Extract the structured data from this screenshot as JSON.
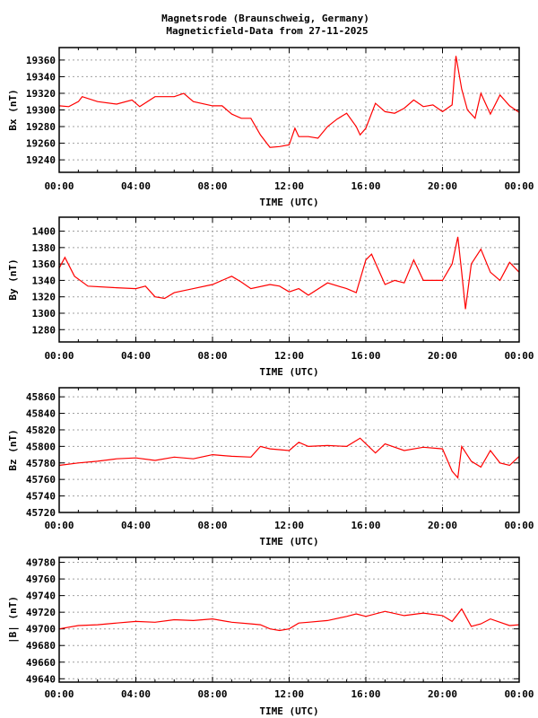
{
  "title": {
    "line1": "Magnetsrode (Braunschweig, Germany)",
    "line2": "Magneticfield-Data from 27-11-2025"
  },
  "colors": {
    "series": "#ff0000",
    "grid": "#a0a0a0",
    "axis": "#000000"
  },
  "chart_data": [
    {
      "type": "line",
      "ylabel": "Bx (nT)",
      "xlabel": "TIME (UTC)",
      "xlim": [
        0,
        24
      ],
      "ylim": [
        19225,
        19375
      ],
      "xticks": [
        "00:00",
        "04:00",
        "08:00",
        "12:00",
        "16:00",
        "20:00",
        "00:00"
      ],
      "yticks": [
        19240,
        19260,
        19280,
        19300,
        19320,
        19340,
        19360
      ],
      "grid": true,
      "series": [
        {
          "name": "Bx",
          "x": [
            0,
            0.5,
            1,
            1.2,
            2,
            3,
            3.8,
            4.2,
            5,
            6,
            6.5,
            7,
            8,
            8.5,
            9,
            9.5,
            10,
            10.5,
            11,
            11.5,
            12,
            12.3,
            12.5,
            13,
            13.5,
            14,
            14.5,
            15,
            15.5,
            15.7,
            16,
            16.5,
            17,
            17.5,
            18,
            18.5,
            19,
            19.5,
            20,
            20.5,
            20.7,
            21,
            21.3,
            21.7,
            22,
            22.5,
            23,
            23.5,
            24
          ],
          "y": [
            19305,
            19304,
            19310,
            19316,
            19310,
            19307,
            19312,
            19304,
            19316,
            19316,
            19320,
            19310,
            19305,
            19305,
            19295,
            19290,
            19290,
            19270,
            19255,
            19256,
            19258,
            19278,
            19268,
            19268,
            19266,
            19280,
            19289,
            19296,
            19280,
            19270,
            19278,
            19308,
            19298,
            19296,
            19302,
            19312,
            19304,
            19306,
            19298,
            19306,
            19365,
            19325,
            19300,
            19290,
            19320,
            19295,
            19318,
            19305,
            19297
          ]
        }
      ]
    },
    {
      "type": "line",
      "ylabel": "By (nT)",
      "xlabel": "TIME (UTC)",
      "xlim": [
        0,
        24
      ],
      "ylim": [
        1265,
        1417
      ],
      "xticks": [
        "00:00",
        "04:00",
        "08:00",
        "12:00",
        "16:00",
        "20:00",
        "00:00"
      ],
      "yticks": [
        1280,
        1300,
        1320,
        1340,
        1360,
        1380,
        1400
      ],
      "grid": true,
      "series": [
        {
          "name": "By",
          "x": [
            0,
            0.3,
            0.8,
            1.5,
            3,
            4,
            4.5,
            5,
            5.5,
            6,
            7,
            8,
            9,
            9.5,
            10,
            11,
            11.5,
            12,
            12.5,
            13,
            14,
            15,
            15.5,
            16,
            16.3,
            17,
            17.5,
            18,
            18.5,
            19,
            20,
            20.5,
            20.8,
            21,
            21.2,
            21.5,
            22,
            22.5,
            23,
            23.5,
            24
          ],
          "y": [
            1355,
            1368,
            1345,
            1333,
            1331,
            1330,
            1333,
            1320,
            1318,
            1325,
            1330,
            1335,
            1345,
            1338,
            1330,
            1335,
            1333,
            1326,
            1330,
            1322,
            1337,
            1330,
            1325,
            1365,
            1372,
            1335,
            1340,
            1337,
            1365,
            1340,
            1340,
            1360,
            1393,
            1350,
            1305,
            1360,
            1378,
            1350,
            1340,
            1362,
            1350
          ]
        }
      ]
    },
    {
      "type": "line",
      "ylabel": "Bz (nT)",
      "xlabel": "TIME (UTC)",
      "xlim": [
        0,
        24
      ],
      "ylim": [
        45720,
        45871
      ],
      "xticks": [
        "00:00",
        "04:00",
        "08:00",
        "12:00",
        "16:00",
        "20:00",
        "00:00"
      ],
      "yticks": [
        45720,
        45740,
        45760,
        45780,
        45800,
        45820,
        45840,
        45860
      ],
      "grid": true,
      "series": [
        {
          "name": "Bz",
          "x": [
            0,
            1,
            2,
            3,
            4,
            5,
            6,
            7,
            8,
            9,
            10,
            10.5,
            11,
            12,
            12.5,
            13,
            14,
            15,
            15.7,
            16.5,
            17,
            18,
            19,
            20,
            20.5,
            20.8,
            21,
            21.5,
            22,
            22.5,
            23,
            23.5,
            24
          ],
          "y": [
            45777,
            45780,
            45782,
            45785,
            45786,
            45783,
            45787,
            45785,
            45790,
            45788,
            45787,
            45800,
            45797,
            45795,
            45805,
            45800,
            45801,
            45800,
            45810,
            45792,
            45803,
            45795,
            45799,
            45797,
            45770,
            45762,
            45800,
            45782,
            45775,
            45795,
            45780,
            45777,
            45788
          ]
        }
      ]
    },
    {
      "type": "line",
      "ylabel": "|B| (nT)",
      "xlabel": "TIME (UTC)",
      "xlim": [
        0,
        24
      ],
      "ylim": [
        49636,
        49786
      ],
      "xticks": [
        "00:00",
        "04:00",
        "08:00",
        "12:00",
        "16:00",
        "20:00",
        "00:00"
      ],
      "yticks": [
        49640,
        49660,
        49680,
        49700,
        49720,
        49740,
        49760,
        49780
      ],
      "grid": true,
      "series": [
        {
          "name": "|B|",
          "x": [
            0,
            1,
            2,
            3,
            4,
            5,
            6,
            7,
            8,
            9,
            10,
            10.5,
            11,
            11.5,
            12,
            12.5,
            13,
            14,
            15,
            15.5,
            16,
            17,
            18,
            19,
            20,
            20.5,
            21,
            21.5,
            22,
            22.5,
            23,
            23.5,
            24
          ],
          "y": [
            49700,
            49704,
            49705,
            49707,
            49709,
            49708,
            49711,
            49710,
            49712,
            49708,
            49706,
            49705,
            49700,
            49698,
            49700,
            49707,
            49708,
            49710,
            49715,
            49718,
            49715,
            49721,
            49716,
            49719,
            49716,
            49709,
            49724,
            49703,
            49706,
            49712,
            49708,
            49704,
            49705
          ]
        }
      ]
    }
  ]
}
